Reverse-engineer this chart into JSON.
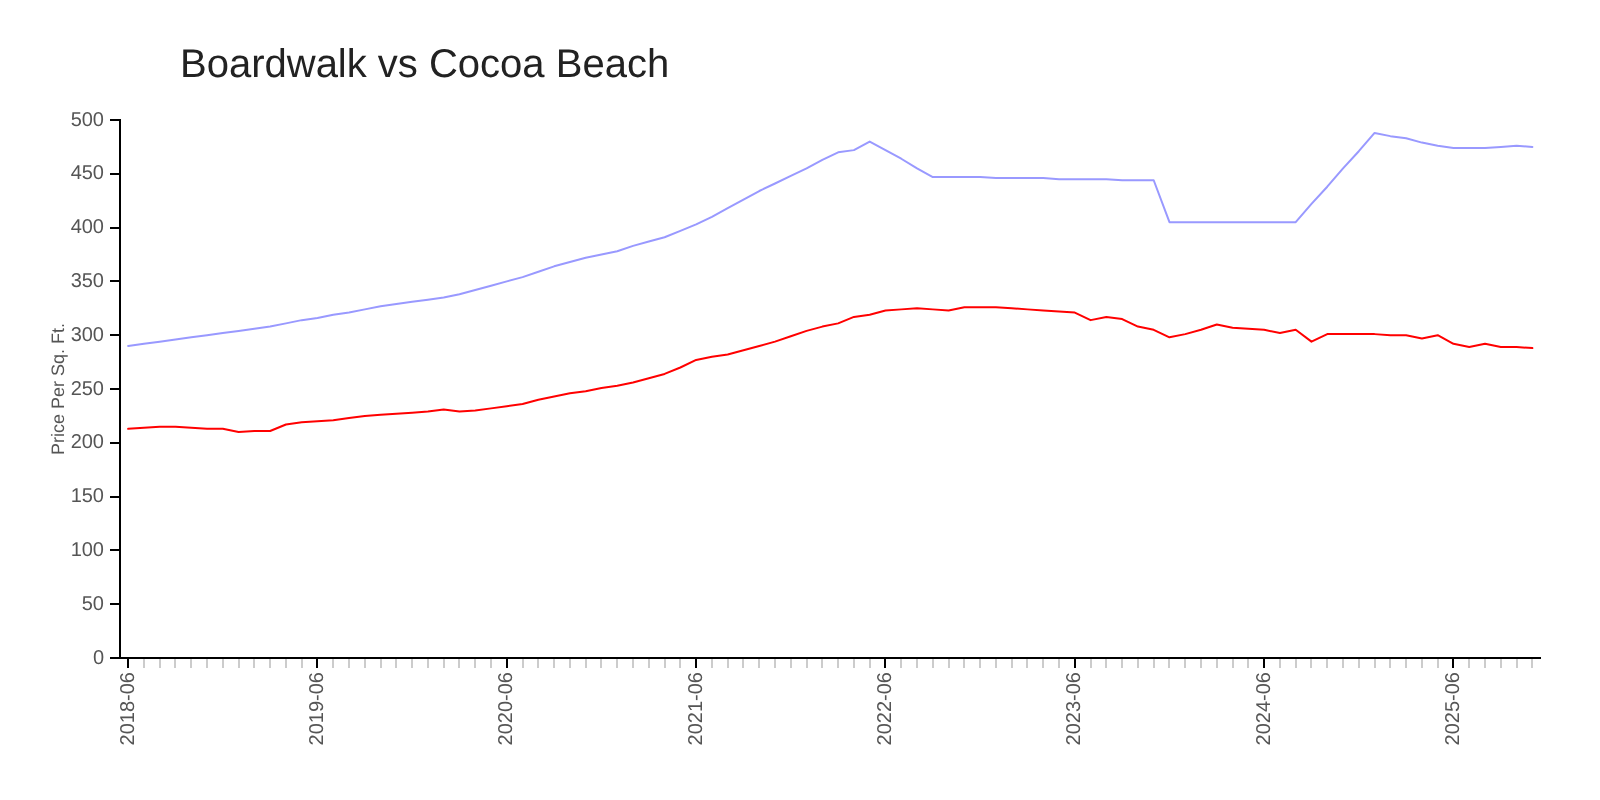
{
  "chart_data": {
    "type": "line",
    "title": "Boardwalk vs Cocoa Beach",
    "ylabel": "Price Per Sq. Ft.",
    "x": [
      "2018-06",
      "2018-07",
      "2018-08",
      "2018-09",
      "2018-10",
      "2018-11",
      "2018-12",
      "2019-01",
      "2019-02",
      "2019-03",
      "2019-04",
      "2019-05",
      "2019-06",
      "2019-07",
      "2019-08",
      "2019-09",
      "2019-10",
      "2019-11",
      "2019-12",
      "2020-01",
      "2020-02",
      "2020-03",
      "2020-04",
      "2020-05",
      "2020-06",
      "2020-07",
      "2020-08",
      "2020-09",
      "2020-10",
      "2020-11",
      "2020-12",
      "2021-01",
      "2021-02",
      "2021-03",
      "2021-04",
      "2021-05",
      "2021-06",
      "2021-07",
      "2021-08",
      "2021-09",
      "2021-10",
      "2021-11",
      "2021-12",
      "2022-01",
      "2022-02",
      "2022-03",
      "2022-04",
      "2022-05",
      "2022-06",
      "2022-07",
      "2022-08",
      "2022-09",
      "2022-10",
      "2022-11",
      "2022-12",
      "2023-01",
      "2023-02",
      "2023-03",
      "2023-04",
      "2023-05",
      "2023-06",
      "2023-07",
      "2023-08",
      "2023-09",
      "2023-10",
      "2023-11",
      "2023-12",
      "2024-01",
      "2024-02",
      "2024-03",
      "2024-04",
      "2024-05",
      "2024-06",
      "2024-07",
      "2024-08",
      "2024-09",
      "2024-10",
      "2024-11",
      "2024-12",
      "2025-01",
      "2025-02",
      "2025-03",
      "2025-04",
      "2025-05",
      "2025-06",
      "2025-07",
      "2025-08",
      "2025-09",
      "2025-10",
      "2025-11"
    ],
    "series": [
      {
        "color": "#9999ff",
        "values": [
          290,
          292,
          294,
          296,
          298,
          300,
          302,
          304,
          306,
          308,
          311,
          314,
          316,
          319,
          321,
          324,
          327,
          329,
          331,
          333,
          335,
          338,
          342,
          346,
          350,
          354,
          359,
          364,
          368,
          372,
          375,
          378,
          383,
          387,
          391,
          397,
          403,
          410,
          418,
          426,
          434,
          441,
          448,
          455,
          463,
          470,
          472,
          480,
          472,
          464,
          455,
          447,
          447,
          447,
          447,
          446,
          446,
          446,
          446,
          445,
          445,
          445,
          445,
          444,
          444,
          444,
          405,
          405,
          405,
          405,
          405,
          405,
          405,
          405,
          405,
          422,
          438,
          455,
          471,
          488,
          485,
          483,
          479,
          476,
          474,
          474,
          474,
          475,
          476,
          475
        ]
      },
      {
        "color": "#ff0000",
        "values": [
          213,
          214,
          215,
          215,
          214,
          213,
          213,
          210,
          211,
          211,
          217,
          219,
          220,
          221,
          223,
          225,
          226,
          227,
          228,
          229,
          231,
          229,
          230,
          232,
          234,
          236,
          240,
          243,
          246,
          248,
          251,
          253,
          256,
          260,
          264,
          270,
          277,
          280,
          282,
          286,
          290,
          294,
          299,
          304,
          308,
          311,
          317,
          319,
          323,
          324,
          325,
          324,
          323,
          326,
          326,
          326,
          325,
          324,
          323,
          322,
          321,
          314,
          317,
          315,
          308,
          305,
          298,
          301,
          305,
          310,
          307,
          306,
          305,
          302,
          305,
          294,
          301,
          301,
          301,
          301,
          300,
          300,
          297,
          300,
          292,
          289,
          292,
          289,
          289,
          288
        ]
      }
    ],
    "xlim": [
      "2018-05-16",
      "2025-11-16"
    ],
    "xticks": [
      "2018-06",
      {
        "value": "2018-07",
        "label": null
      },
      {
        "value": "2018-08",
        "label": null
      },
      {
        "value": "2018-09",
        "label": null
      },
      {
        "value": "2018-10",
        "label": null
      },
      {
        "value": "2018-11",
        "label": null
      },
      {
        "value": "2018-12",
        "label": null
      },
      {
        "value": "2019-01",
        "label": null
      },
      {
        "value": "2019-02",
        "label": null
      },
      {
        "value": "2019-03",
        "label": null
      },
      {
        "value": "2019-04",
        "label": null
      },
      {
        "value": "2019-05",
        "label": null
      },
      "2019-06",
      {
        "value": "2019-07",
        "label": null
      },
      {
        "value": "2019-08",
        "label": null
      },
      {
        "value": "2019-09",
        "label": null
      },
      {
        "value": "2019-10",
        "label": null
      },
      {
        "value": "2019-11",
        "label": null
      },
      {
        "value": "2019-12",
        "label": null
      },
      {
        "value": "2020-01",
        "label": null
      },
      {
        "value": "2020-02",
        "label": null
      },
      {
        "value": "2020-03",
        "label": null
      },
      {
        "value": "2020-04",
        "label": null
      },
      {
        "value": "2020-05",
        "label": null
      },
      "2020-06",
      {
        "value": "2020-07",
        "label": null
      },
      {
        "value": "2020-08",
        "label": null
      },
      {
        "value": "2020-09",
        "label": null
      },
      {
        "value": "2020-10",
        "label": null
      },
      {
        "value": "2020-11",
        "label": null
      },
      {
        "value": "2020-12",
        "label": null
      },
      {
        "value": "2021-01",
        "label": null
      },
      {
        "value": "2021-02",
        "label": null
      },
      {
        "value": "2021-03",
        "label": null
      },
      {
        "value": "2021-04",
        "label": null
      },
      {
        "value": "2021-05",
        "label": null
      },
      "2021-06",
      {
        "value": "2021-07",
        "label": null
      },
      {
        "value": "2021-08",
        "label": null
      },
      {
        "value": "2021-09",
        "label": null
      },
      {
        "value": "2021-10",
        "label": null
      },
      {
        "value": "2021-11",
        "label": null
      },
      {
        "value": "2021-12",
        "label": null
      },
      {
        "value": "2022-01",
        "label": null
      },
      {
        "value": "2022-02",
        "label": null
      },
      {
        "value": "2022-03",
        "label": null
      },
      {
        "value": "2022-04",
        "label": null
      },
      {
        "value": "2022-05",
        "label": null
      },
      "2022-06",
      {
        "value": "2022-07",
        "label": null
      },
      {
        "value": "2022-08",
        "label": null
      },
      {
        "value": "2022-09",
        "label": null
      },
      {
        "value": "2022-10",
        "label": null
      },
      {
        "value": "2022-11",
        "label": null
      },
      {
        "value": "2022-12",
        "label": null
      },
      {
        "value": "2023-01",
        "label": null
      },
      {
        "value": "2023-02",
        "label": null
      },
      {
        "value": "2023-03",
        "label": null
      },
      {
        "value": "2023-04",
        "label": null
      },
      {
        "value": "2023-05",
        "label": null
      },
      "2023-06",
      {
        "value": "2023-07",
        "label": null
      },
      {
        "value": "2023-08",
        "label": null
      },
      {
        "value": "2023-09",
        "label": null
      },
      {
        "value": "2023-10",
        "label": null
      },
      {
        "value": "2023-11",
        "label": null
      },
      {
        "value": "2023-12",
        "label": null
      },
      {
        "value": "2024-01",
        "label": null
      },
      {
        "value": "2024-02",
        "label": null
      },
      {
        "value": "2024-03",
        "label": null
      },
      {
        "value": "2024-04",
        "label": null
      },
      {
        "value": "2024-05",
        "label": null
      },
      "2024-06",
      {
        "value": "2024-07",
        "label": null
      },
      {
        "value": "2024-08",
        "label": null
      },
      {
        "value": "2024-09",
        "label": null
      },
      {
        "value": "2024-10",
        "label": null
      },
      {
        "value": "2024-11",
        "label": null
      },
      {
        "value": "2024-12",
        "label": null
      },
      {
        "value": "2025-01",
        "label": null
      },
      {
        "value": "2025-02",
        "label": null
      },
      {
        "value": "2025-03",
        "label": null
      },
      {
        "value": "2025-04",
        "label": null
      },
      {
        "value": "2025-05",
        "label": null
      },
      "2025-06",
      {
        "value": "2025-07",
        "label": null
      },
      {
        "value": "2025-08",
        "label": null
      },
      {
        "value": "2025-09",
        "label": null
      },
      {
        "value": "2025-10",
        "label": null
      },
      {
        "value": "2025-11",
        "label": null
      }
    ],
    "ylim": [
      0,
      500
    ],
    "yticks": [
      0,
      50,
      100,
      150,
      200,
      250,
      300,
      350,
      400,
      450,
      500
    ]
  }
}
